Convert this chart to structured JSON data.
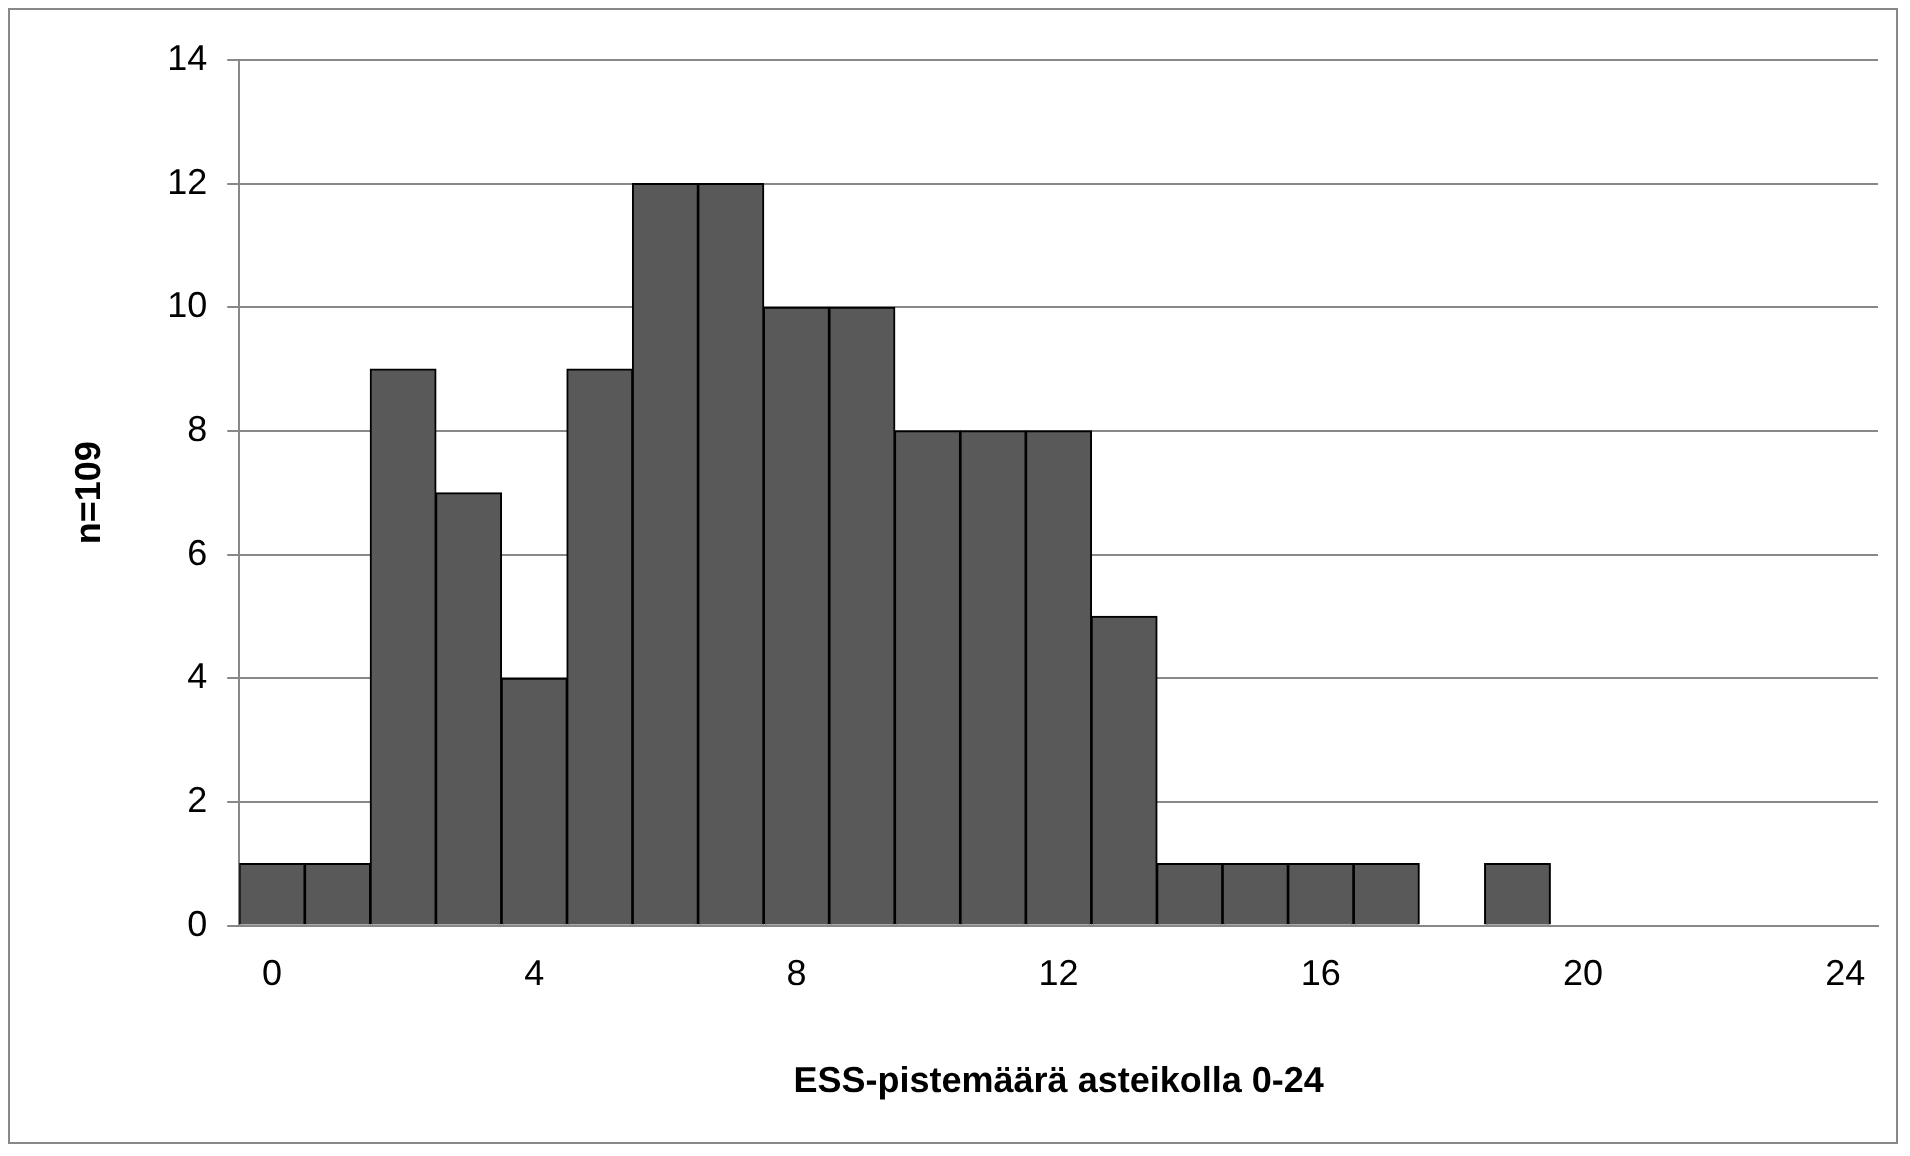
{
  "chart_data": {
    "type": "bar",
    "xlabel": "ESS-pistemäärä asteikolla 0-24",
    "ylabel": "n=109",
    "categories": [
      "0",
      null,
      null,
      null,
      "4",
      null,
      null,
      null,
      "8",
      null,
      null,
      null,
      "12",
      null,
      null,
      null,
      "16",
      null,
      null,
      null,
      "20",
      null,
      null,
      null,
      "24"
    ],
    "values": [
      1,
      1,
      9,
      7,
      4,
      9,
      12,
      12,
      10,
      10,
      8,
      8,
      8,
      5,
      1,
      1,
      1,
      1,
      0,
      1,
      0,
      0,
      0,
      0,
      0
    ],
    "color": "#595959",
    "ylim": [
      0,
      14
    ],
    "yticks": [
      0,
      2,
      4,
      6,
      8,
      10,
      12,
      14
    ],
    "grid": "y",
    "legend": false
  }
}
